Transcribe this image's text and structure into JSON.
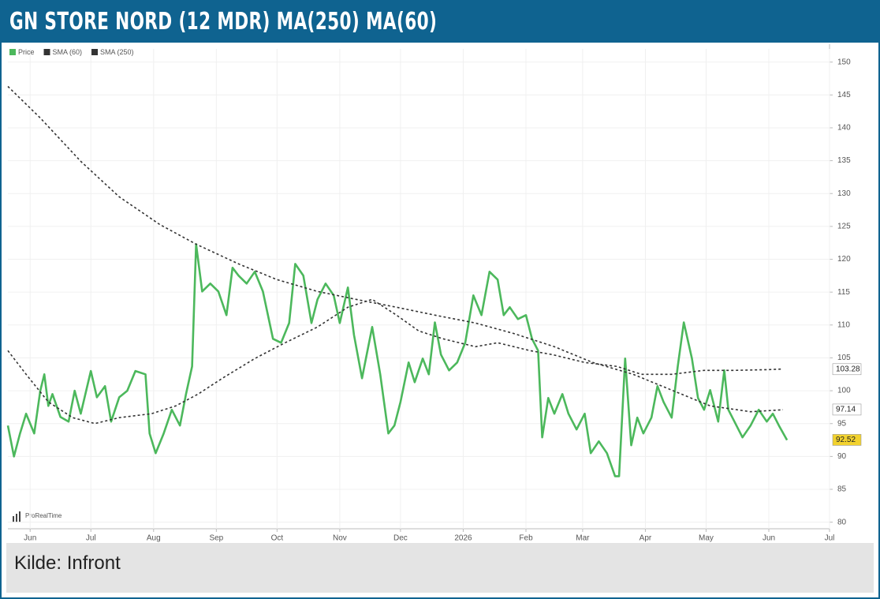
{
  "header": "GN STORE NORD (12 MDR) MA(250) MA(60)",
  "source": "Kilde: Infront",
  "watermark": "ProRealTime",
  "chart_data": {
    "type": "line",
    "x": [
      0,
      3,
      6,
      9,
      13,
      16,
      18,
      20,
      22,
      26,
      30,
      33,
      36,
      41,
      44,
      48,
      51,
      55,
      59,
      63,
      68,
      70,
      73,
      77,
      81,
      85,
      88,
      91,
      93,
      96,
      100,
      104,
      108,
      111,
      114,
      118,
      122,
      126,
      131,
      135,
      139,
      142,
      146,
      150,
      153,
      157,
      161,
      164,
      168,
      171,
      175,
      180,
      184,
      188,
      191,
      194,
      198,
      201,
      205,
      208,
      211,
      214,
      218,
      222,
      226,
      230,
      234,
      238,
      242,
      245,
      248,
      252,
      256,
      259,
      262,
      264,
      267,
      270,
      274,
      277,
      281,
      285,
      288,
      292,
      296,
      300,
      302,
      305,
      308,
      311,
      314,
      318,
      321,
      324,
      328,
      331,
      334,
      338,
      341,
      344,
      347,
      351,
      354,
      356,
      359,
      363,
      367,
      371,
      375,
      378,
      381,
      385
    ],
    "xlim": [
      0,
      406
    ],
    "xticks": [
      {
        "value": 11,
        "label": "Jun"
      },
      {
        "value": 41,
        "label": "Jul"
      },
      {
        "value": 72,
        "label": "Aug"
      },
      {
        "value": 103,
        "label": "Sep"
      },
      {
        "value": 133,
        "label": "Oct"
      },
      {
        "value": 164,
        "label": "Nov"
      },
      {
        "value": 194,
        "label": "Dec"
      },
      {
        "value": 225,
        "label": "2026"
      },
      {
        "value": 256,
        "label": "Feb"
      },
      {
        "value": 284,
        "label": "Mar"
      },
      {
        "value": 315,
        "label": "Apr"
      },
      {
        "value": 345,
        "label": "May"
      },
      {
        "value": 376,
        "label": "Jun"
      },
      {
        "value": 406,
        "label": "Jul"
      }
    ],
    "ylim": [
      79,
      152
    ],
    "yticks": [
      80,
      85,
      90,
      95,
      100,
      105,
      110,
      115,
      120,
      125,
      130,
      135,
      140,
      145,
      150
    ],
    "grid": true,
    "series": [
      {
        "name": "Price",
        "color": "#4cb85c",
        "style": "solid",
        "last_value": 92.52,
        "tag_color": "#f2d22e",
        "values": [
          94.7,
          90,
          93.5,
          96.5,
          93.5,
          100,
          102.5,
          97.7,
          99.5,
          96,
          95.3,
          100,
          96.5,
          103,
          99,
          100.7,
          95.3,
          99,
          100,
          103,
          102.5,
          93.5,
          90.5,
          93.5,
          97.1,
          94.7,
          99.5,
          103.7,
          122.3,
          115.1,
          116.3,
          115.1,
          111.5,
          118.7,
          117.5,
          116.3,
          118.1,
          115.1,
          107.9,
          107.3,
          110.3,
          119.3,
          117.5,
          110.3,
          113.9,
          116.3,
          114.5,
          110.3,
          115.7,
          108.5,
          101.9,
          109.7,
          102.5,
          93.5,
          94.7,
          98.3,
          104.3,
          101.3,
          104.9,
          102.5,
          110.4,
          105.5,
          103.1,
          104.3,
          107.3,
          114.5,
          111.5,
          118.1,
          116.9,
          111.5,
          112.7,
          110.9,
          111.5,
          107.9,
          106.1,
          92.9,
          98.9,
          96.5,
          99.5,
          96.5,
          94.1,
          96.5,
          90.5,
          92.3,
          90.5,
          87,
          87,
          104.9,
          91.7,
          95.9,
          93.5,
          95.9,
          100.7,
          98.3,
          95.9,
          103.7,
          110.4,
          104.9,
          98.9,
          97.1,
          100.1,
          95.3,
          103.1,
          97.1,
          95.3,
          92.9,
          94.7,
          97.1,
          95.3,
          96.5,
          94.7,
          92.5
        ]
      },
      {
        "name": "SMA (60)",
        "color": "#333333",
        "style": "dotted",
        "last_value": 103.28,
        "tag_color": "#ffffff",
        "x": [
          0,
          9,
          20,
          32,
          43,
          55,
          71,
          83,
          94,
          106,
          122,
          137,
          153,
          168,
          180,
          192,
          203,
          215,
          231,
          242,
          258,
          269,
          285,
          301,
          313,
          328,
          344,
          359,
          375,
          383
        ],
        "values": [
          106.1,
          102.5,
          98.3,
          95.9,
          95,
          95.9,
          96.5,
          97.7,
          99.5,
          101.9,
          104.9,
          107.3,
          109.7,
          112.7,
          113.9,
          111.5,
          109.1,
          107.9,
          106.7,
          107.3,
          106.1,
          105.5,
          104.3,
          103.7,
          102.5,
          102.5,
          103.1,
          103.1,
          103.2,
          103.3
        ]
      },
      {
        "name": "SMA (250)",
        "color": "#333333",
        "style": "dotted",
        "last_value": 97.14,
        "tag_color": "#ffffff",
        "x": [
          0,
          16,
          36,
          55,
          75,
          93,
          114,
          133,
          153,
          172,
          192,
          211,
          231,
          250,
          270,
          289,
          309,
          328,
          347,
          367,
          383
        ],
        "values": [
          146.3,
          141.5,
          134.9,
          129.5,
          125.3,
          122.3,
          119.3,
          116.9,
          115.1,
          113.9,
          112.7,
          111.5,
          110.3,
          108.7,
          106.7,
          104.3,
          102.5,
          100.1,
          97.7,
          96.8,
          97.1
        ]
      }
    ]
  }
}
